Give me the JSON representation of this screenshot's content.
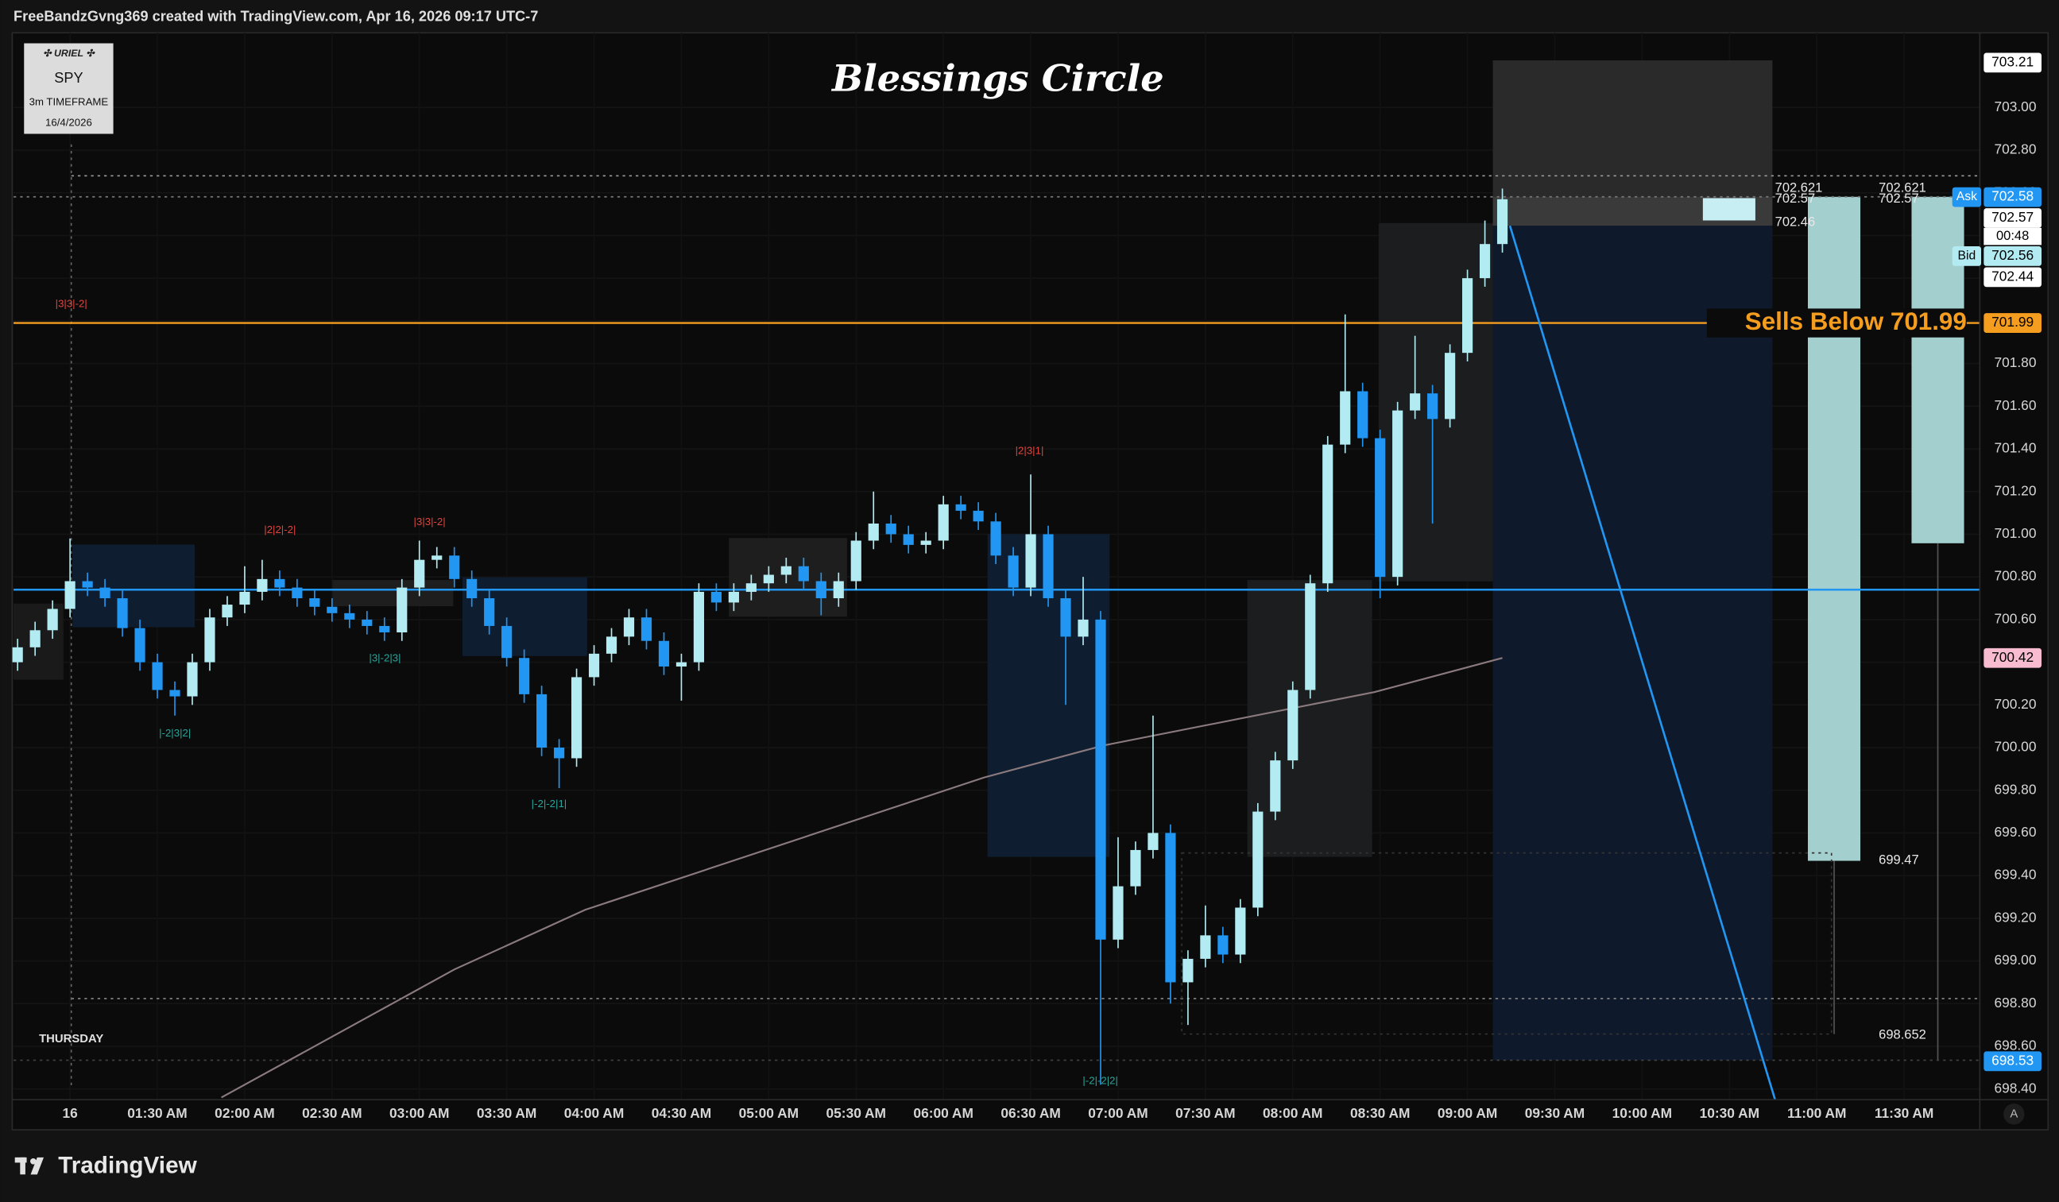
{
  "header": {
    "text": "FreeBandzGvng369 created with TradingView.com, Apr 16, 2026 09:17 UTC-7"
  },
  "info_box": {
    "title": "✣ URIEL ✣",
    "symbol": "SPY",
    "timeframe": "3m TIMEFRAME",
    "date": "16/4/2026"
  },
  "footer": {
    "brand": "TradingView"
  },
  "chart_data": {
    "type": "candlestick",
    "title": "Blessings Circle",
    "day_label": "THURSDAY",
    "autoscale_button": "A",
    "up_color": "#b2ebf2",
    "down_color": "#2196f3",
    "grid": true,
    "xlim": [
      40.6,
      716
    ],
    "ylim": [
      698.35,
      703.35
    ],
    "xticks": [
      {
        "value": 60,
        "label": "16"
      },
      {
        "value": 90,
        "label": "01:30 AM"
      },
      {
        "value": 120,
        "label": "02:00 AM"
      },
      {
        "value": 150,
        "label": "02:30 AM"
      },
      {
        "value": 180,
        "label": "03:00 AM"
      },
      {
        "value": 210,
        "label": "03:30 AM"
      },
      {
        "value": 240,
        "label": "04:00 AM"
      },
      {
        "value": 270,
        "label": "04:30 AM"
      },
      {
        "value": 300,
        "label": "05:00 AM"
      },
      {
        "value": 330,
        "label": "05:30 AM"
      },
      {
        "value": 360,
        "label": "06:00 AM"
      },
      {
        "value": 390,
        "label": "06:30 AM"
      },
      {
        "value": 420,
        "label": "07:00 AM"
      },
      {
        "value": 450,
        "label": "07:30 AM"
      },
      {
        "value": 480,
        "label": "08:00 AM"
      },
      {
        "value": 510,
        "label": "08:30 AM"
      },
      {
        "value": 540,
        "label": "09:00 AM"
      },
      {
        "value": 570,
        "label": "09:30 AM"
      },
      {
        "value": 600,
        "label": "10:00 AM"
      },
      {
        "value": 630,
        "label": "10:30 AM"
      },
      {
        "value": 660,
        "label": "11:00 AM"
      },
      {
        "value": 690,
        "label": "11:30 AM"
      }
    ],
    "yticks": [
      {
        "value": 698.4,
        "label": "698.40"
      },
      {
        "value": 698.6,
        "label": "698.60"
      },
      {
        "value": 698.8,
        "label": "698.80"
      },
      {
        "value": 699,
        "label": "699.00"
      },
      {
        "value": 699.2,
        "label": "699.20"
      },
      {
        "value": 699.4,
        "label": "699.40"
      },
      {
        "value": 699.6,
        "label": "699.60"
      },
      {
        "value": 699.8,
        "label": "699.80"
      },
      {
        "value": 700,
        "label": "700.00"
      },
      {
        "value": 700.2,
        "label": "700.20"
      },
      {
        "value": 700.4,
        "label": "700.40"
      },
      {
        "value": 700.6,
        "label": "700.60"
      },
      {
        "value": 700.8,
        "label": "700.80"
      },
      {
        "value": 701,
        "label": "701.00"
      },
      {
        "value": 701.2,
        "label": "701.20"
      },
      {
        "value": 701.4,
        "label": "701.40"
      },
      {
        "value": 701.6,
        "label": "701.60"
      },
      {
        "value": 701.8,
        "label": "701.80"
      },
      {
        "value": 702,
        "label": "702.00"
      },
      {
        "value": 702.2,
        "label": "702.20"
      },
      {
        "value": 702.4,
        "label": "702.40"
      },
      {
        "value": 702.6,
        "label": "702.60"
      },
      {
        "value": 702.8,
        "label": "702.80"
      },
      {
        "value": 703,
        "label": "703.00"
      }
    ],
    "x": [
      42,
      48,
      54,
      60,
      66,
      72,
      78,
      84,
      90,
      96,
      102,
      108,
      114,
      120,
      126,
      132,
      138,
      144,
      150,
      156,
      162,
      168,
      174,
      180,
      186,
      192,
      198,
      204,
      210,
      216,
      222,
      228,
      234,
      240,
      246,
      252,
      258,
      264,
      270,
      276,
      282,
      288,
      294,
      300,
      306,
      312,
      318,
      324,
      330,
      336,
      342,
      348,
      354,
      360,
      366,
      372,
      378,
      384,
      390,
      396,
      402,
      408,
      414,
      420,
      426,
      432,
      438,
      444,
      450,
      456,
      462,
      468,
      474,
      480,
      486,
      492,
      498,
      504,
      510,
      516,
      522,
      528,
      534,
      540,
      546,
      552
    ],
    "open": [
      700.4,
      700.47,
      700.55,
      700.65,
      700.78,
      700.75,
      700.7,
      700.56,
      700.4,
      700.27,
      700.24,
      700.4,
      700.61,
      700.67,
      700.73,
      700.79,
      700.75,
      700.7,
      700.66,
      700.63,
      700.6,
      700.57,
      700.54,
      700.75,
      700.88,
      700.9,
      700.79,
      700.7,
      700.57,
      700.42,
      700.25,
      700.0,
      699.95,
      700.33,
      700.44,
      700.52,
      700.61,
      700.5,
      700.38,
      700.4,
      700.73,
      700.68,
      700.73,
      700.77,
      700.81,
      700.85,
      700.78,
      700.7,
      700.78,
      700.97,
      701.05,
      701.0,
      700.95,
      700.97,
      701.14,
      701.11,
      701.06,
      700.9,
      700.75,
      701.0,
      700.7,
      700.52,
      700.6,
      699.1,
      699.35,
      699.52,
      699.6,
      698.9,
      699.01,
      699.12,
      699.03,
      699.25,
      699.7,
      699.94,
      700.27,
      700.77,
      701.42,
      701.67,
      701.45,
      700.8,
      701.58,
      701.66,
      701.54,
      701.85,
      702.2,
      702.36
    ],
    "high": [
      700.51,
      700.59,
      700.69,
      700.98,
      700.82,
      700.79,
      700.74,
      700.6,
      700.44,
      700.31,
      700.44,
      700.65,
      700.71,
      700.85,
      700.88,
      700.83,
      700.79,
      700.74,
      700.7,
      700.67,
      700.64,
      700.61,
      700.79,
      700.97,
      700.94,
      700.94,
      700.83,
      700.74,
      700.61,
      700.46,
      700.29,
      700.04,
      700.37,
      700.48,
      700.56,
      700.65,
      700.65,
      700.54,
      700.44,
      700.77,
      700.77,
      700.77,
      700.81,
      700.85,
      700.89,
      700.89,
      700.82,
      700.82,
      701.01,
      701.2,
      701.09,
      701.04,
      701.01,
      701.18,
      701.18,
      701.15,
      701.1,
      700.94,
      701.28,
      701.04,
      700.74,
      700.8,
      700.64,
      699.58,
      699.56,
      700.15,
      699.64,
      699.05,
      699.26,
      699.16,
      699.29,
      699.74,
      699.98,
      700.31,
      700.81,
      701.46,
      702.03,
      701.71,
      701.49,
      701.62,
      701.93,
      701.7,
      701.89,
      702.24,
      702.47,
      702.62
    ],
    "low": [
      700.36,
      700.43,
      700.51,
      700.61,
      700.71,
      700.66,
      700.52,
      700.36,
      700.23,
      700.15,
      700.2,
      700.36,
      700.57,
      700.63,
      700.69,
      700.71,
      700.66,
      700.62,
      700.59,
      700.56,
      700.53,
      700.5,
      700.5,
      700.71,
      700.84,
      700.75,
      700.66,
      700.53,
      700.38,
      700.21,
      699.96,
      699.81,
      699.91,
      700.29,
      700.4,
      700.48,
      700.46,
      700.34,
      700.22,
      700.36,
      700.64,
      700.64,
      700.69,
      700.73,
      700.77,
      700.74,
      700.62,
      700.66,
      700.74,
      700.93,
      700.96,
      700.91,
      700.91,
      700.93,
      701.07,
      701.02,
      700.86,
      700.71,
      700.71,
      700.66,
      700.2,
      700.48,
      698.42,
      699.06,
      699.31,
      699.48,
      698.8,
      698.7,
      698.97,
      698.99,
      698.99,
      699.21,
      699.66,
      699.9,
      700.23,
      700.73,
      701.38,
      701.41,
      700.7,
      700.76,
      701.54,
      701.05,
      701.5,
      701.81,
      702.16,
      702.32
    ],
    "close": [
      700.47,
      700.55,
      700.65,
      700.78,
      700.75,
      700.7,
      700.56,
      700.4,
      700.27,
      700.24,
      700.4,
      700.61,
      700.67,
      700.73,
      700.79,
      700.75,
      700.7,
      700.66,
      700.63,
      700.6,
      700.57,
      700.54,
      700.75,
      700.88,
      700.9,
      700.79,
      700.7,
      700.57,
      700.42,
      700.25,
      700.0,
      699.95,
      700.33,
      700.44,
      700.52,
      700.61,
      700.5,
      700.38,
      700.4,
      700.73,
      700.68,
      700.73,
      700.77,
      700.81,
      700.85,
      700.78,
      700.7,
      700.78,
      700.97,
      701.05,
      701.0,
      700.95,
      700.97,
      701.14,
      701.11,
      701.06,
      700.9,
      700.75,
      701.0,
      700.7,
      700.52,
      700.6,
      699.1,
      699.35,
      699.52,
      699.6,
      698.9,
      699.01,
      699.12,
      699.03,
      699.25,
      699.7,
      699.94,
      700.27,
      700.77,
      701.42,
      701.67,
      701.45,
      700.8,
      701.58,
      701.66,
      701.54,
      701.85,
      702.2,
      702.36,
      702.57
    ],
    "lines": [
      {
        "color": "#8a7a7e",
        "x": [
          112,
          192,
          237,
          374,
          415,
          508,
          552
        ],
        "values": [
          698.36,
          698.96,
          699.24,
          699.86,
          700.01,
          700.26,
          700.42
        ]
      }
    ],
    "hlines": [
      {
        "value": 701.99,
        "color": "#f59d1f",
        "label": "Sells Below 701.99"
      },
      {
        "value": 700.74,
        "color": "#2196f3"
      }
    ],
    "badges": [
      {
        "value": 703.21,
        "label": "703.21",
        "bg": "#ffffff",
        "fg": "#000000"
      },
      {
        "value": 702.58,
        "label": "702.58",
        "bg": "#2196f3",
        "fg": "#ffffff",
        "tag": "Ask"
      },
      {
        "value": 702.57,
        "label": "702.57",
        "bg": "#ffffff",
        "fg": "#000000",
        "sub": "00:48"
      },
      {
        "value": 702.56,
        "label": "702.56",
        "bg": "#b2ebf2",
        "fg": "#000000",
        "tag": "Bid"
      },
      {
        "value": 702.44,
        "label": "702.44",
        "bg": "#ffffff",
        "fg": "#000000"
      },
      {
        "value": 701.99,
        "label": "701.99",
        "bg": "#f59d1f",
        "fg": "#000000"
      },
      {
        "value": 700.42,
        "label": "700.42",
        "bg": "#f8bbd0",
        "fg": "#000000"
      },
      {
        "value": 698.53,
        "label": "698.53",
        "bg": "#2196f3",
        "fg": "#ffffff"
      }
    ],
    "level_labels": [
      {
        "value": 702.621,
        "label": "702.621"
      },
      {
        "value": 702.57,
        "label": "702.57"
      },
      {
        "value": 702.46,
        "label": "702.46"
      },
      {
        "value": 699.47,
        "label": "699.47"
      },
      {
        "value": 698.652,
        "label": "698.652"
      }
    ],
    "annotations": [
      {
        "label": "|3|3|-2|",
        "color": "#e0443e"
      },
      {
        "label": "|2|2|-2|",
        "color": "#e0443e"
      },
      {
        "label": "|3|3|-2|",
        "color": "#e0443e"
      },
      {
        "label": "|2|3|1|",
        "color": "#e0443e"
      },
      {
        "label": "|-2|3|2|",
        "color": "#26a69a"
      },
      {
        "label": "|3|-2|3|",
        "color": "#26a69a"
      },
      {
        "label": "|-2|-2|1|",
        "color": "#26a69a"
      },
      {
        "label": "|-2|-2|2|",
        "color": "#26a69a"
      }
    ]
  }
}
